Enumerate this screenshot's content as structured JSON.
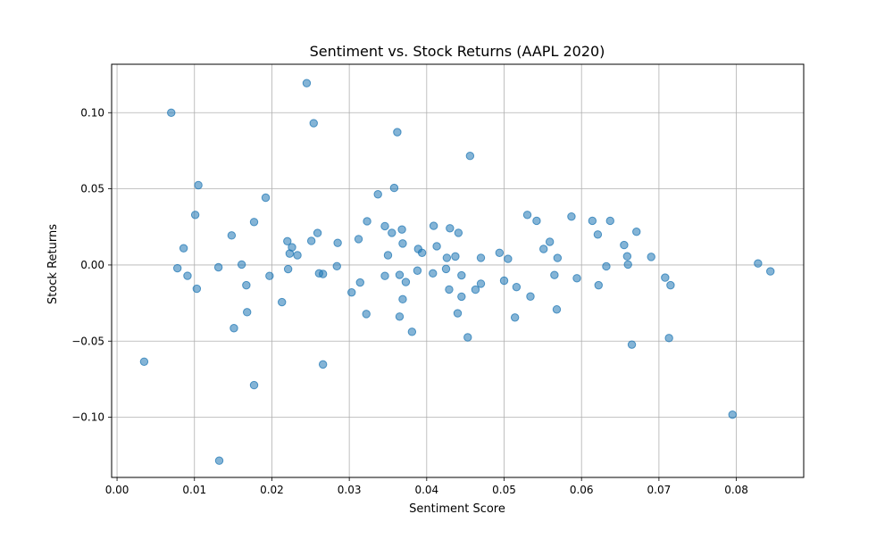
{
  "chart_data": {
    "type": "scatter",
    "title": "Sentiment vs. Stock Returns (AAPL 2020)",
    "xlabel": "Sentiment Score",
    "ylabel": "Stock Returns",
    "xlim": [
      -0.0007,
      0.0887
    ],
    "ylim": [
      -0.1395,
      0.1318
    ],
    "xticks": [
      0.0,
      0.01,
      0.02,
      0.03,
      0.04,
      0.05,
      0.06,
      0.07,
      0.08
    ],
    "xtick_labels": [
      "0.00",
      "0.01",
      "0.02",
      "0.03",
      "0.04",
      "0.05",
      "0.06",
      "0.07",
      "0.08"
    ],
    "yticks": [
      -0.1,
      -0.05,
      0.0,
      0.05,
      0.1
    ],
    "ytick_labels": [
      "−0.10",
      "−0.05",
      "0.00",
      "0.05",
      "0.10"
    ],
    "grid": true,
    "point_color": "#1f77b4",
    "point_alpha": 0.55,
    "points": [
      {
        "x": 0.0035,
        "y": -0.0635
      },
      {
        "x": 0.007,
        "y": 0.1
      },
      {
        "x": 0.0078,
        "y": -0.0021
      },
      {
        "x": 0.0086,
        "y": 0.011
      },
      {
        "x": 0.0091,
        "y": -0.0071
      },
      {
        "x": 0.0101,
        "y": 0.0329
      },
      {
        "x": 0.0103,
        "y": -0.0156
      },
      {
        "x": 0.0105,
        "y": 0.0524
      },
      {
        "x": 0.0131,
        "y": -0.0015
      },
      {
        "x": 0.0132,
        "y": -0.1285
      },
      {
        "x": 0.0148,
        "y": 0.0194
      },
      {
        "x": 0.0151,
        "y": -0.0415
      },
      {
        "x": 0.0161,
        "y": 0.0003
      },
      {
        "x": 0.0167,
        "y": -0.0133
      },
      {
        "x": 0.0168,
        "y": -0.031
      },
      {
        "x": 0.0177,
        "y": 0.0282
      },
      {
        "x": 0.0177,
        "y": -0.0789
      },
      {
        "x": 0.0192,
        "y": 0.0442
      },
      {
        "x": 0.0197,
        "y": -0.0072
      },
      {
        "x": 0.0213,
        "y": -0.0244
      },
      {
        "x": 0.022,
        "y": 0.0156
      },
      {
        "x": 0.0221,
        "y": -0.0027
      },
      {
        "x": 0.0223,
        "y": 0.0075
      },
      {
        "x": 0.0226,
        "y": 0.0116
      },
      {
        "x": 0.0233,
        "y": 0.0064
      },
      {
        "x": 0.0245,
        "y": 0.1194
      },
      {
        "x": 0.0251,
        "y": 0.0158
      },
      {
        "x": 0.0254,
        "y": 0.0931
      },
      {
        "x": 0.0259,
        "y": 0.021
      },
      {
        "x": 0.0261,
        "y": -0.0055
      },
      {
        "x": 0.0266,
        "y": -0.0059
      },
      {
        "x": 0.0266,
        "y": -0.0653
      },
      {
        "x": 0.0284,
        "y": -0.0008
      },
      {
        "x": 0.0285,
        "y": 0.0145
      },
      {
        "x": 0.0303,
        "y": -0.018
      },
      {
        "x": 0.0312,
        "y": 0.017
      },
      {
        "x": 0.0314,
        "y": -0.0115
      },
      {
        "x": 0.0322,
        "y": -0.0322
      },
      {
        "x": 0.0323,
        "y": 0.0287
      },
      {
        "x": 0.0337,
        "y": 0.0464
      },
      {
        "x": 0.0346,
        "y": 0.0255
      },
      {
        "x": 0.0346,
        "y": -0.0072
      },
      {
        "x": 0.035,
        "y": 0.0064
      },
      {
        "x": 0.0355,
        "y": 0.0211
      },
      {
        "x": 0.0358,
        "y": 0.0506
      },
      {
        "x": 0.0362,
        "y": 0.0872
      },
      {
        "x": 0.0365,
        "y": -0.0065
      },
      {
        "x": 0.0365,
        "y": -0.0339
      },
      {
        "x": 0.0368,
        "y": 0.0233
      },
      {
        "x": 0.0369,
        "y": 0.0141
      },
      {
        "x": 0.0369,
        "y": -0.0225
      },
      {
        "x": 0.0373,
        "y": -0.0112
      },
      {
        "x": 0.0381,
        "y": -0.0439
      },
      {
        "x": 0.0388,
        "y": -0.0037
      },
      {
        "x": 0.0389,
        "y": 0.0105
      },
      {
        "x": 0.0394,
        "y": 0.008
      },
      {
        "x": 0.0408,
        "y": -0.0055
      },
      {
        "x": 0.0409,
        "y": 0.0257
      },
      {
        "x": 0.0413,
        "y": 0.0123
      },
      {
        "x": 0.0425,
        "y": -0.0026
      },
      {
        "x": 0.0426,
        "y": 0.0047
      },
      {
        "x": 0.0429,
        "y": -0.0161
      },
      {
        "x": 0.043,
        "y": 0.0241
      },
      {
        "x": 0.0437,
        "y": 0.0056
      },
      {
        "x": 0.044,
        "y": -0.0317
      },
      {
        "x": 0.0441,
        "y": 0.0211
      },
      {
        "x": 0.0445,
        "y": -0.0068
      },
      {
        "x": 0.0445,
        "y": -0.0208
      },
      {
        "x": 0.0453,
        "y": -0.0475
      },
      {
        "x": 0.0456,
        "y": 0.0716
      },
      {
        "x": 0.0463,
        "y": -0.0162
      },
      {
        "x": 0.047,
        "y": 0.0047
      },
      {
        "x": 0.047,
        "y": -0.0123
      },
      {
        "x": 0.0494,
        "y": 0.008
      },
      {
        "x": 0.05,
        "y": -0.0103
      },
      {
        "x": 0.0505,
        "y": 0.004
      },
      {
        "x": 0.0514,
        "y": -0.0345
      },
      {
        "x": 0.0516,
        "y": -0.0145
      },
      {
        "x": 0.053,
        "y": 0.0329
      },
      {
        "x": 0.0534,
        "y": -0.0207
      },
      {
        "x": 0.0542,
        "y": 0.029
      },
      {
        "x": 0.0551,
        "y": 0.0105
      },
      {
        "x": 0.0559,
        "y": 0.0152
      },
      {
        "x": 0.0565,
        "y": -0.0066
      },
      {
        "x": 0.0568,
        "y": -0.0292
      },
      {
        "x": 0.0569,
        "y": 0.0046
      },
      {
        "x": 0.0587,
        "y": 0.0318
      },
      {
        "x": 0.0594,
        "y": -0.0087
      },
      {
        "x": 0.0614,
        "y": 0.029
      },
      {
        "x": 0.0621,
        "y": 0.02
      },
      {
        "x": 0.0622,
        "y": -0.0133
      },
      {
        "x": 0.0632,
        "y": -0.0009
      },
      {
        "x": 0.0637,
        "y": 0.029
      },
      {
        "x": 0.0655,
        "y": 0.0131
      },
      {
        "x": 0.0659,
        "y": 0.0057
      },
      {
        "x": 0.066,
        "y": 0.0003
      },
      {
        "x": 0.0665,
        "y": -0.0523
      },
      {
        "x": 0.0671,
        "y": 0.0218
      },
      {
        "x": 0.069,
        "y": 0.0053
      },
      {
        "x": 0.0708,
        "y": -0.0083
      },
      {
        "x": 0.0713,
        "y": -0.048
      },
      {
        "x": 0.0715,
        "y": -0.0133
      },
      {
        "x": 0.0795,
        "y": -0.0983
      },
      {
        "x": 0.0828,
        "y": 0.001
      },
      {
        "x": 0.0844,
        "y": -0.0042
      }
    ]
  }
}
